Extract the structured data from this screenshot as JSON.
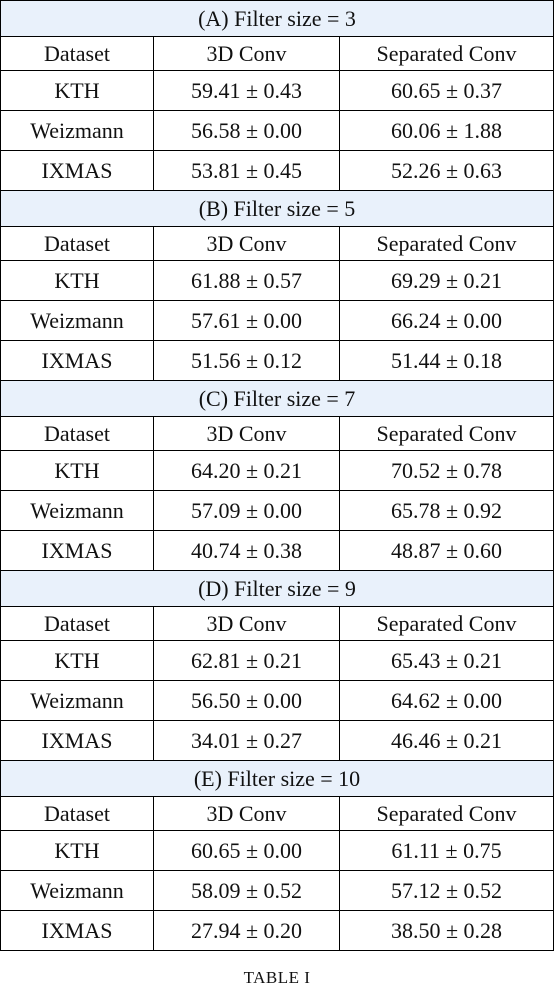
{
  "sections": [
    {
      "title": "(A) Filter size = 3",
      "header": [
        "Dataset",
        "3D Conv",
        "Separated Conv"
      ],
      "rows": [
        [
          "KTH",
          "59.41 ± 0.43",
          "60.65 ± 0.37"
        ],
        [
          "Weizmann",
          "56.58 ± 0.00",
          "60.06 ± 1.88"
        ],
        [
          "IXMAS",
          "53.81 ± 0.45",
          "52.26 ± 0.63"
        ]
      ]
    },
    {
      "title": "(B) Filter size = 5",
      "header": [
        "Dataset",
        "3D Conv",
        "Separated Conv"
      ],
      "rows": [
        [
          "KTH",
          "61.88 ± 0.57",
          "69.29 ± 0.21"
        ],
        [
          "Weizmann",
          "57.61 ± 0.00",
          "66.24 ± 0.00"
        ],
        [
          "IXMAS",
          "51.56 ± 0.12",
          "51.44 ± 0.18"
        ]
      ]
    },
    {
      "title": "(C) Filter size = 7",
      "header": [
        "Dataset",
        "3D Conv",
        "Separated Conv"
      ],
      "rows": [
        [
          "KTH",
          "64.20 ± 0.21",
          "70.52 ± 0.78"
        ],
        [
          "Weizmann",
          "57.09 ± 0.00",
          "65.78 ± 0.92"
        ],
        [
          "IXMAS",
          "40.74 ± 0.38",
          "48.87 ± 0.60"
        ]
      ]
    },
    {
      "title": "(D) Filter size = 9",
      "header": [
        "Dataset",
        "3D Conv",
        "Separated Conv"
      ],
      "rows": [
        [
          "KTH",
          "62.81 ± 0.21",
          "65.43 ± 0.21"
        ],
        [
          "Weizmann",
          "56.50 ± 0.00",
          "64.62 ± 0.00"
        ],
        [
          "IXMAS",
          "34.01 ± 0.27",
          "46.46 ± 0.21"
        ]
      ]
    },
    {
      "title": "(E) Filter size = 10",
      "header": [
        "Dataset",
        "3D Conv",
        "Separated Conv"
      ],
      "rows": [
        [
          "KTH",
          "60.65 ± 0.00",
          "61.11 ± 0.75"
        ],
        [
          "Weizmann",
          "58.09 ± 0.52",
          "57.12 ± 0.52"
        ],
        [
          "IXMAS",
          "27.94 ± 0.20",
          "38.50 ± 0.28"
        ]
      ]
    }
  ],
  "caption": "TABLE I"
}
